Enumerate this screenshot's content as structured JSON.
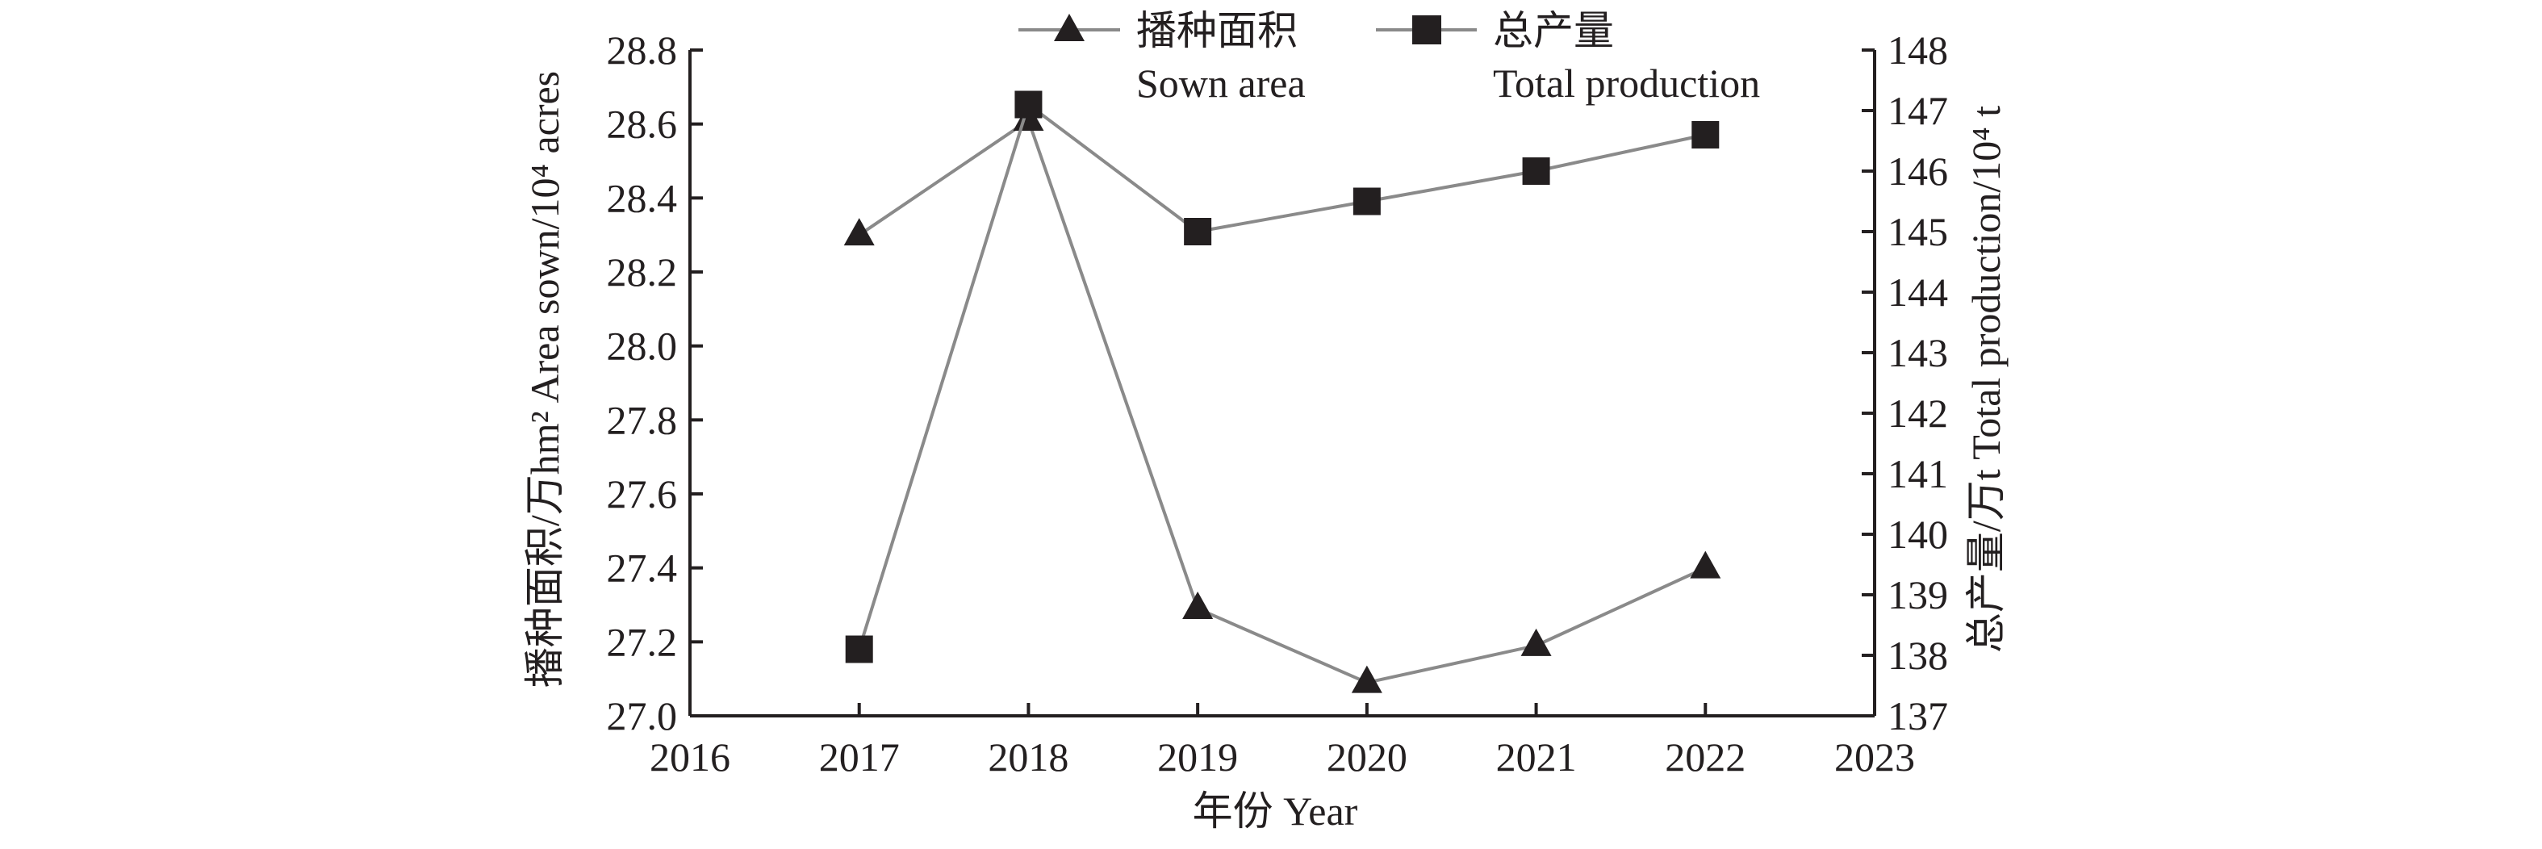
{
  "chart_data": {
    "type": "line",
    "x": [
      2017,
      2018,
      2019,
      2020,
      2021,
      2022
    ],
    "x_ticks": [
      "2016",
      "2017",
      "2018",
      "2019",
      "2020",
      "2021",
      "2022",
      "2023"
    ],
    "xlim": [
      2016,
      2023
    ],
    "xlabel": "年份 Year",
    "y_left": {
      "label": "播种面积/万hm² Area sown/10⁴ acres",
      "lim": [
        27.0,
        28.8
      ],
      "ticks": [
        "27.0",
        "27.2",
        "27.4",
        "27.6",
        "27.8",
        "28.0",
        "28.2",
        "28.4",
        "28.6",
        "28.8"
      ]
    },
    "y_right": {
      "label": "总产量/万t Total production/10⁴ t",
      "lim": [
        137,
        148
      ],
      "ticks": [
        "137",
        "138",
        "139",
        "140",
        "141",
        "142",
        "143",
        "144",
        "145",
        "146",
        "147",
        "148"
      ]
    },
    "series": [
      {
        "name_cn": "播种面积",
        "name_en": "Sown area",
        "axis": "left",
        "marker": "triangle",
        "color": "#231f20",
        "line_color": "#8a8a8a",
        "values": [
          28.3,
          28.61,
          27.29,
          27.09,
          27.19,
          27.4
        ]
      },
      {
        "name_cn": "总产量",
        "name_en": "Total production",
        "axis": "right",
        "marker": "square",
        "color": "#231f20",
        "line_color": "#8a8a8a",
        "values": [
          138.1,
          147.1,
          145.0,
          145.5,
          146.0,
          146.6
        ]
      }
    ],
    "legend_position": "top-center",
    "grid": false
  }
}
